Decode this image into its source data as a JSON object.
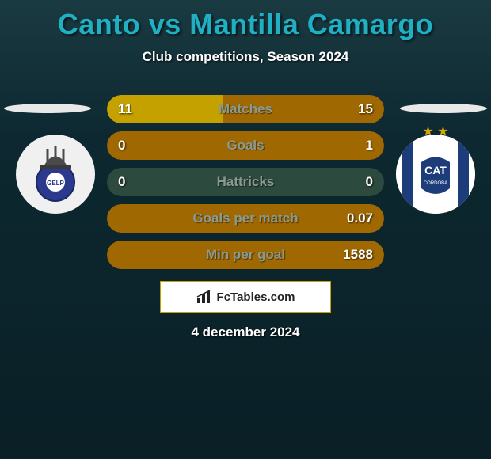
{
  "title": "Canto vs Mantilla Camargo",
  "subtitle": "Club competitions, Season 2024",
  "date": "4 december 2024",
  "brand": "FcTables.com",
  "colors": {
    "title": "#1fb0c4",
    "bar_left": "#c5a100",
    "bar_right": "#a06800",
    "bar_bg_neutral": "#2d4a3f",
    "bar_bg_right_dominant": "#a06800",
    "label": "#8a9a8f",
    "value": "#ffffff",
    "footer_border": "#c5a100"
  },
  "left_team": {
    "name": "Gimnasia",
    "badge_bg": "#f0f0f0",
    "inner": "#2b3a8f"
  },
  "right_team": {
    "name": "Talleres",
    "badge_bg": "#ffffff",
    "stripe": "#1c3d7a",
    "stars": "★ ★"
  },
  "stats": [
    {
      "label": "Matches",
      "left_val": "11",
      "right_val": "15",
      "left_pct": 42,
      "right_pct": 58,
      "left_color": "#c5a100",
      "right_color": "#a06800",
      "bg": "#2d4a3f"
    },
    {
      "label": "Goals",
      "left_val": "0",
      "right_val": "1",
      "left_pct": 0,
      "right_pct": 100,
      "left_color": "#c5a100",
      "right_color": "#a06800",
      "bg": "#a06800"
    },
    {
      "label": "Hattricks",
      "left_val": "0",
      "right_val": "0",
      "left_pct": 0,
      "right_pct": 0,
      "left_color": "#c5a100",
      "right_color": "#a06800",
      "bg": "#2d4a3f"
    },
    {
      "label": "Goals per match",
      "left_val": "",
      "right_val": "0.07",
      "left_pct": 0,
      "right_pct": 100,
      "left_color": "#c5a100",
      "right_color": "#a06800",
      "bg": "#a06800"
    },
    {
      "label": "Min per goal",
      "left_val": "",
      "right_val": "1588",
      "left_pct": 0,
      "right_pct": 100,
      "left_color": "#c5a100",
      "right_color": "#a06800",
      "bg": "#a06800"
    }
  ]
}
